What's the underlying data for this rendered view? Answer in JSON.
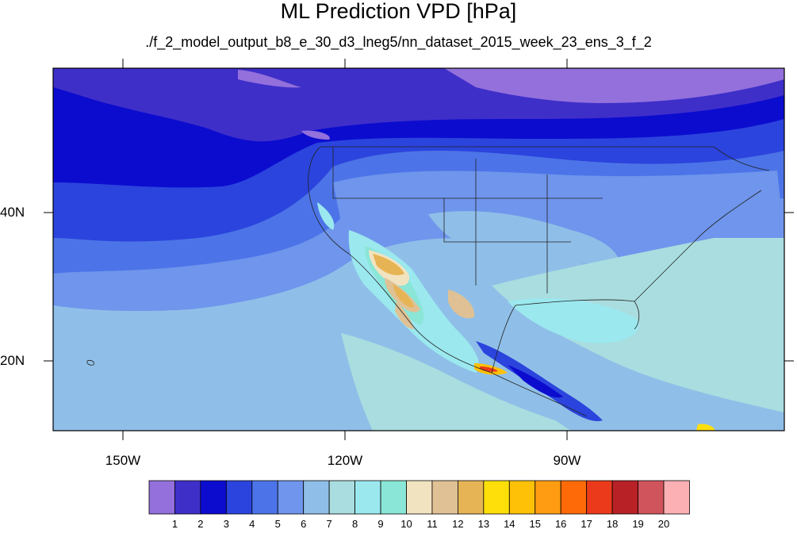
{
  "title": "ML Prediction VPD [hPa]",
  "subtitle": "./f_2_model_output_b8_e_30_d3_lneg5/nn_dataset_2015_week_23_ens_3_f_2",
  "lat_labels": [
    "40N",
    "20N"
  ],
  "lon_labels": [
    "150W",
    "120W",
    "90W"
  ],
  "colorbar": {
    "labels": [
      "1",
      "2",
      "3",
      "4",
      "5",
      "6",
      "7",
      "8",
      "9",
      "10",
      "11",
      "12",
      "13",
      "14",
      "15",
      "16",
      "17",
      "18",
      "19",
      "20"
    ],
    "colors": [
      "#9370db",
      "#3f2fc9",
      "#0c0ccf",
      "#2b44dd",
      "#4c74e8",
      "#6f95ec",
      "#8fbfe8",
      "#a9dde0",
      "#9be8ef",
      "#8ae6d6",
      "#f2e3c0",
      "#dfc195",
      "#e6b455",
      "#ffdf0a",
      "#ffc107",
      "#ff9c12",
      "#ff6a09",
      "#eb3a1b",
      "#b82126",
      "#d0545b",
      "#fcb0b3"
    ]
  }
}
